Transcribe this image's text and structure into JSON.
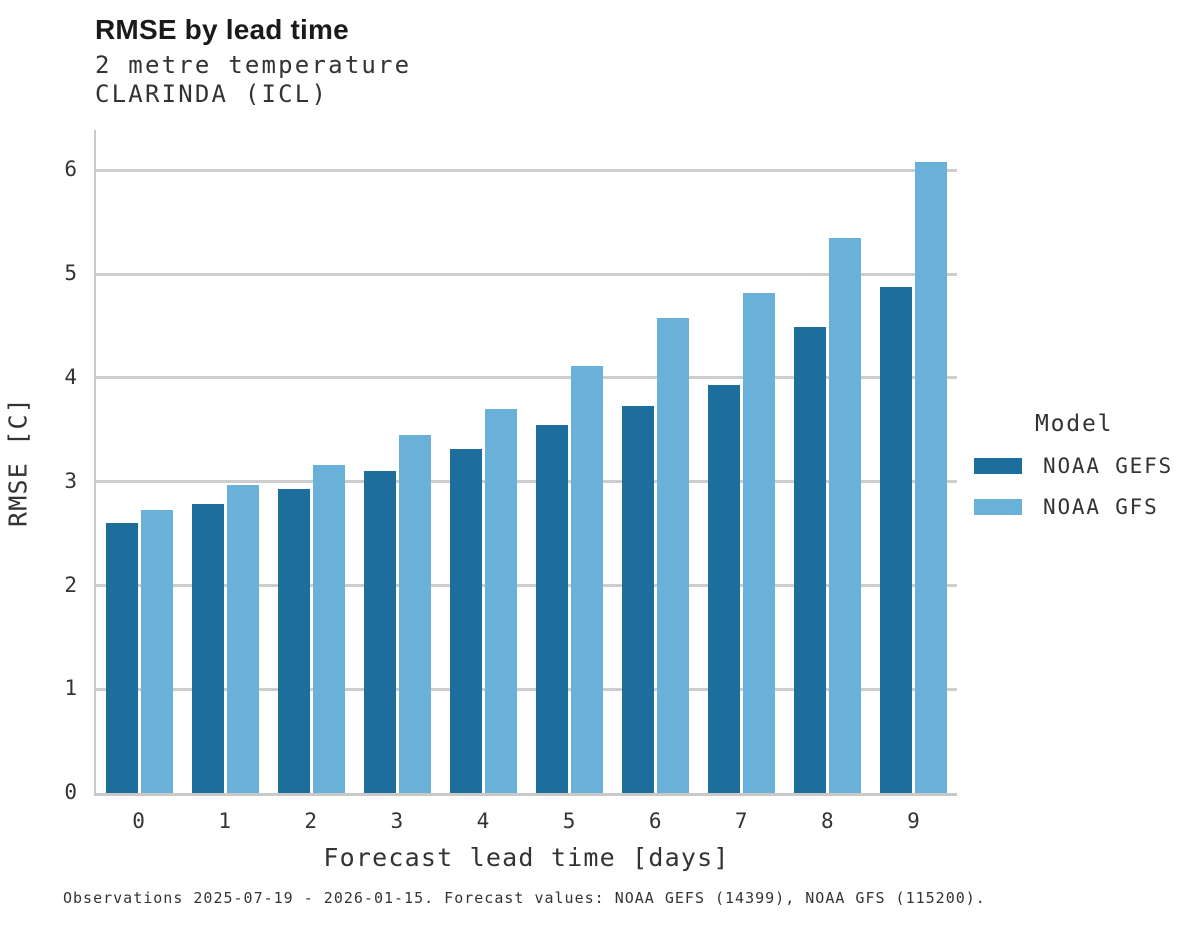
{
  "header": {
    "title": "RMSE by lead time",
    "subtitle_line1": "2 metre temperature",
    "subtitle_line2": "CLARINDA (ICL)"
  },
  "chart_data": {
    "type": "bar",
    "title": "RMSE by lead time",
    "subtitle": "2 metre temperature — CLARINDA (ICL)",
    "xlabel": "Forecast lead time [days]",
    "ylabel": "RMSE [C]",
    "categories": [
      0,
      1,
      2,
      3,
      4,
      5,
      6,
      7,
      8,
      9
    ],
    "series": [
      {
        "name": "NOAA GEFS",
        "color": "#1d6e9d",
        "values": [
          2.6,
          2.79,
          2.93,
          3.1,
          3.32,
          3.55,
          3.73,
          3.93,
          4.49,
          4.88
        ]
      },
      {
        "name": "NOAA GFS",
        "color": "#69b1d9",
        "values": [
          2.73,
          2.97,
          3.16,
          3.45,
          3.7,
          4.12,
          4.58,
          4.82,
          5.35,
          6.08
        ]
      }
    ],
    "ylim": [
      0,
      6.39
    ],
    "yticks": [
      0,
      1,
      2,
      3,
      4,
      5,
      6
    ],
    "grid": true,
    "legend_title": "Model",
    "legend_position": "right",
    "grid_color": "#cdcdcd",
    "axis_color": "#c9c9c9"
  },
  "legend": {
    "title": "Model",
    "entries": [
      "NOAA GEFS",
      "NOAA GFS"
    ]
  },
  "caption": "Observations 2025-07-19 - 2026-01-15. Forecast values: NOAA GEFS (14399), NOAA GFS (115200)."
}
